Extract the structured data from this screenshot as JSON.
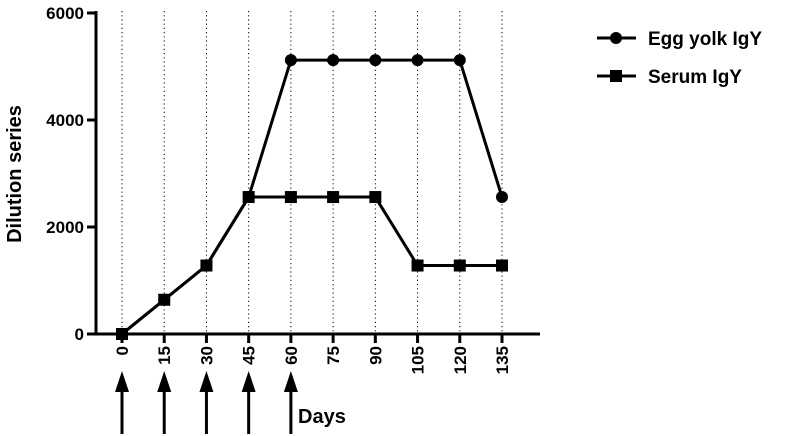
{
  "chart_data": {
    "type": "line",
    "title": "",
    "xlabel": "Days",
    "ylabel": "Dilution series",
    "ylim": [
      0,
      6000
    ],
    "yticks": [
      0,
      2000,
      4000,
      6000
    ],
    "x": [
      0,
      15,
      30,
      45,
      60,
      75,
      90,
      105,
      120,
      135
    ],
    "grid": "vertical dotted lines at each x tick",
    "legend": "top-right",
    "series": [
      {
        "name": "Egg yolk IgY",
        "marker": "circle",
        "values": [
          0,
          640,
          1280,
          2560,
          5120,
          5120,
          5120,
          5120,
          5120,
          2560
        ]
      },
      {
        "name": "Serum IgY",
        "marker": "square",
        "values": [
          0,
          640,
          1280,
          2560,
          2560,
          2560,
          2560,
          1280,
          1280,
          1280
        ]
      }
    ],
    "annotations": {
      "immunization_arrows_at_days": [
        0,
        15,
        30,
        45,
        60
      ]
    }
  }
}
